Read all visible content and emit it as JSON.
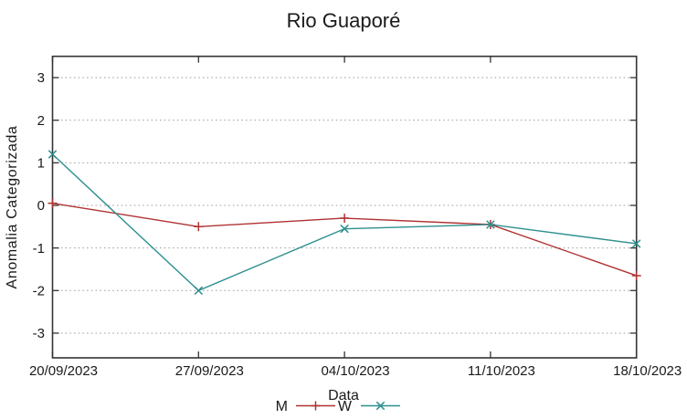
{
  "title": "Rio Guaporé",
  "chart_data": {
    "type": "line",
    "title": "Rio Guaporé",
    "xlabel": "Data",
    "ylabel": "Anomalia Categorizada",
    "categories": [
      "20/09/2023",
      "27/09/2023",
      "04/10/2023",
      "11/10/2023",
      "18/10/2023"
    ],
    "series": [
      {
        "name": "M",
        "color": "#b03232",
        "marker": "plus",
        "values": [
          0.05,
          -0.5,
          -0.3,
          -0.45,
          -1.65
        ]
      },
      {
        "name": "W",
        "color": "#2e8f8f",
        "marker": "cross",
        "values": [
          1.2,
          -2.0,
          -0.55,
          -0.45,
          -0.9
        ]
      }
    ],
    "yticks": [
      3,
      2,
      1,
      0,
      -1,
      -2,
      -3
    ],
    "ylim": [
      -3.58,
      3.5
    ],
    "grid": "horizontal-dotted",
    "legend_position": "bottom-center",
    "colors": {
      "axis": "#333333",
      "grid": "#9a9a9a",
      "text": "#1a1a1a"
    }
  }
}
